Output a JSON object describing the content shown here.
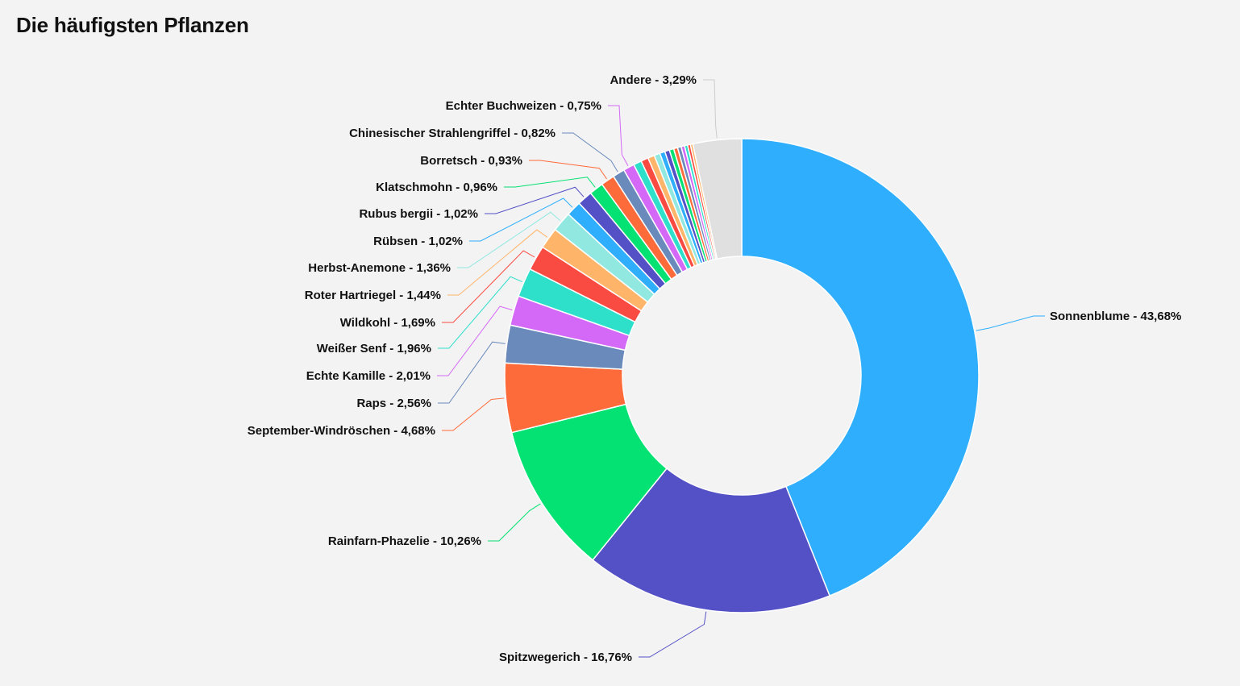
{
  "page": {
    "title": "Die häufigsten Pflanzen"
  },
  "chart_data": {
    "type": "pie",
    "title": "Die häufigsten Pflanzen",
    "donut": true,
    "slices": [
      {
        "label": "Sonnenblume - 43,68%",
        "value": 43.68,
        "color": "#2eaefc"
      },
      {
        "label": "Spitzwegerich - 16,76%",
        "value": 16.76,
        "color": "#5450c5"
      },
      {
        "label": "Rainfarn-Phazelie - 10,26%",
        "value": 10.26,
        "color": "#03e272"
      },
      {
        "label": "September-Windröschen - 4,68%",
        "value": 4.68,
        "color": "#fe6b3a"
      },
      {
        "label": "Raps - 2,56%",
        "value": 2.56,
        "color": "#6b8abc"
      },
      {
        "label": "Echte Kamille - 2,01%",
        "value": 2.01,
        "color": "#d569f7"
      },
      {
        "label": "Weißer Senf - 1,96%",
        "value": 1.96,
        "color": "#2ee0ca"
      },
      {
        "label": "Wildkohl - 1,69%",
        "value": 1.69,
        "color": "#fa4b42"
      },
      {
        "label": "Roter Hartriegel - 1,44%",
        "value": 1.44,
        "color": "#feb56a"
      },
      {
        "label": "Herbst-Anemone - 1,36%",
        "value": 1.36,
        "color": "#91e8e1"
      },
      {
        "label": "Rübsen - 1,02%",
        "value": 1.02,
        "color": "#2eaefc"
      },
      {
        "label": "Rubus bergii - 1,02%",
        "value": 1.02,
        "color": "#5450c5"
      },
      {
        "label": "Klatschmohn - 0,96%",
        "value": 0.96,
        "color": "#03e272"
      },
      {
        "label": "Borretsch - 0,93%",
        "value": 0.93,
        "color": "#fe6b3a"
      },
      {
        "label": "Chinesischer Strahlengriffel - 0,82%",
        "value": 0.82,
        "color": "#6b8abc"
      },
      {
        "label": "Echter Buchweizen - 0,75%",
        "value": 0.75,
        "color": "#d569f7"
      },
      {
        "label": "",
        "value": 0.55,
        "color": "#2ee0ca"
      },
      {
        "label": "",
        "value": 0.5,
        "color": "#fa4b42"
      },
      {
        "label": "",
        "value": 0.45,
        "color": "#feb56a"
      },
      {
        "label": "",
        "value": 0.4,
        "color": "#91e8e1"
      },
      {
        "label": "",
        "value": 0.35,
        "color": "#2eaefc"
      },
      {
        "label": "",
        "value": 0.32,
        "color": "#5450c5"
      },
      {
        "label": "",
        "value": 0.3,
        "color": "#03e272"
      },
      {
        "label": "",
        "value": 0.27,
        "color": "#fe6b3a"
      },
      {
        "label": "",
        "value": 0.25,
        "color": "#6b8abc"
      },
      {
        "label": "",
        "value": 0.23,
        "color": "#d569f7"
      },
      {
        "label": "",
        "value": 0.21,
        "color": "#2ee0ca"
      },
      {
        "label": "",
        "value": 0.19,
        "color": "#fa4b42"
      },
      {
        "label": "",
        "value": 0.17,
        "color": "#feb56a"
      },
      {
        "label": "Andere - 3,29%",
        "value": 3.29,
        "color": "#e0e0e0"
      }
    ]
  }
}
